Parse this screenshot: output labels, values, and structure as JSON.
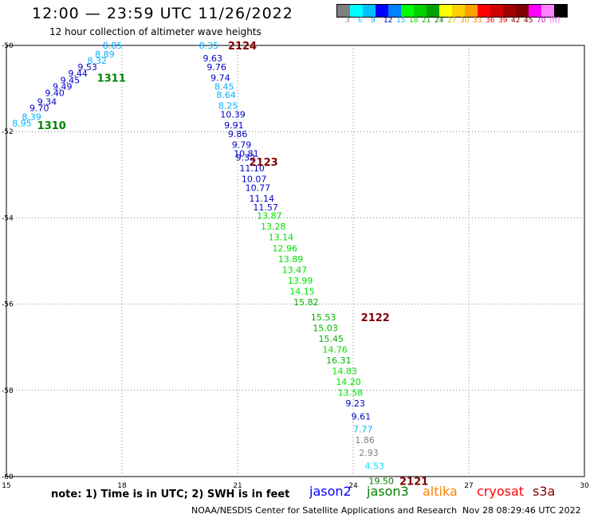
{
  "header": {
    "title": "12:00 — 23:59 UTC 11/26/2022",
    "subtitle": "12 hour collection of altimeter wave heights"
  },
  "color_scale": {
    "colors": [
      "#808080",
      "#00ffff",
      "#00bfff",
      "#0000ff",
      "#0080ff",
      "#00ff00",
      "#00d000",
      "#00a000",
      "#ffff00",
      "#ffd000",
      "#ffa000",
      "#ff0000",
      "#d00000",
      "#a00000",
      "#800000",
      "#ff00ff",
      "#ff80ff",
      "#000000"
    ],
    "labels": [
      "3",
      "6",
      "9",
      "12",
      "15",
      "18",
      "21",
      "24",
      "27",
      "30",
      "33",
      "36",
      "39",
      "42",
      "45",
      "70",
      "(ft)"
    ],
    "label_colors": [
      "#808080",
      "#00e0ff",
      "#00a0ff",
      "#0000c8",
      "#00b0ff",
      "#00e000",
      "#00b000",
      "#008000",
      "#c0c000",
      "#e0a000",
      "#ff8000",
      "#ff0000",
      "#d00000",
      "#a00000",
      "#800000",
      "#d000d0",
      "#ff60ff",
      "#000000"
    ]
  },
  "map": {
    "x_ticks": [
      "15",
      "18",
      "21",
      "24",
      "27",
      "30"
    ],
    "y_ticks": [
      "-50",
      "-52",
      "-54",
      "-56",
      "-58",
      "-60"
    ],
    "grid_color": "#808080"
  },
  "observations": [
    {
      "v": "8.85",
      "lon": 17.5,
      "lat": -50.0,
      "c": "#00b0ff"
    },
    {
      "v": "8.89",
      "lon": 17.3,
      "lat": -50.2,
      "c": "#00b0ff"
    },
    {
      "v": "8.32",
      "lon": 17.1,
      "lat": -50.35,
      "c": "#00b0ff"
    },
    {
      "v": "9.53",
      "lon": 16.85,
      "lat": -50.5,
      "c": "#0000c8"
    },
    {
      "v": "9.44",
      "lon": 16.6,
      "lat": -50.65,
      "c": "#0000c8"
    },
    {
      "v": "9.45",
      "lon": 16.4,
      "lat": -50.8,
      "c": "#0000c8"
    },
    {
      "v": "9.49",
      "lon": 16.2,
      "lat": -50.95,
      "c": "#0000c8"
    },
    {
      "v": "9.40",
      "lon": 16.0,
      "lat": -51.1,
      "c": "#0000c8"
    },
    {
      "v": "9.34",
      "lon": 15.8,
      "lat": -51.3,
      "c": "#0000c8"
    },
    {
      "v": "9.70",
      "lon": 15.6,
      "lat": -51.45,
      "c": "#0000c8"
    },
    {
      "v": "8.39",
      "lon": 15.4,
      "lat": -51.65,
      "c": "#00b0ff"
    },
    {
      "v": "8.95",
      "lon": 15.15,
      "lat": -51.8,
      "c": "#00b0ff"
    },
    {
      "v": "8.35",
      "lon": 20.0,
      "lat": -50.0,
      "c": "#00b0ff"
    },
    {
      "v": "9.63",
      "lon": 20.1,
      "lat": -50.3,
      "c": "#0000c8"
    },
    {
      "v": "9.76",
      "lon": 20.2,
      "lat": -50.5,
      "c": "#0000c8"
    },
    {
      "v": "9.74",
      "lon": 20.3,
      "lat": -50.75,
      "c": "#0000c8"
    },
    {
      "v": "8.45",
      "lon": 20.4,
      "lat": -50.95,
      "c": "#00b0ff"
    },
    {
      "v": "8.64",
      "lon": 20.45,
      "lat": -51.15,
      "c": "#00b0ff"
    },
    {
      "v": "8.25",
      "lon": 20.5,
      "lat": -51.4,
      "c": "#00b0ff"
    },
    {
      "v": "10.39",
      "lon": 20.55,
      "lat": -51.6,
      "c": "#0000c8"
    },
    {
      "v": "9.91",
      "lon": 20.65,
      "lat": -51.85,
      "c": "#0000c8"
    },
    {
      "v": "9.86",
      "lon": 20.75,
      "lat": -52.05,
      "c": "#0000c8"
    },
    {
      "v": "9.79",
      "lon": 20.85,
      "lat": -52.3,
      "c": "#0000c8"
    },
    {
      "v": "10.81",
      "lon": 20.9,
      "lat": -52.5,
      "c": "#0000c8"
    },
    {
      "v": "9.32",
      "lon": 20.95,
      "lat": -52.6,
      "c": "#0000c8"
    },
    {
      "v": "11.10",
      "lon": 21.05,
      "lat": -52.85,
      "c": "#0000c8"
    },
    {
      "v": "10.07",
      "lon": 21.1,
      "lat": -53.1,
      "c": "#0000c8"
    },
    {
      "v": "10.77",
      "lon": 21.2,
      "lat": -53.3,
      "c": "#0000c8"
    },
    {
      "v": "11.14",
      "lon": 21.3,
      "lat": -53.55,
      "c": "#0000c8"
    },
    {
      "v": "11.57",
      "lon": 21.4,
      "lat": -53.75,
      "c": "#0000c8"
    },
    {
      "v": "13.87",
      "lon": 21.5,
      "lat": -53.95,
      "c": "#00e000"
    },
    {
      "v": "13.28",
      "lon": 21.6,
      "lat": -54.2,
      "c": "#00e000"
    },
    {
      "v": "13.14",
      "lon": 21.8,
      "lat": -54.45,
      "c": "#00e000"
    },
    {
      "v": "12.96",
      "lon": 21.9,
      "lat": -54.7,
      "c": "#00e000"
    },
    {
      "v": "13.89",
      "lon": 22.05,
      "lat": -54.95,
      "c": "#00e000"
    },
    {
      "v": "13.47",
      "lon": 22.15,
      "lat": -55.2,
      "c": "#00e000"
    },
    {
      "v": "13.99",
      "lon": 22.3,
      "lat": -55.45,
      "c": "#00e000"
    },
    {
      "v": "14.15",
      "lon": 22.35,
      "lat": -55.7,
      "c": "#00e000"
    },
    {
      "v": "15.82",
      "lon": 22.45,
      "lat": -55.95,
      "c": "#00b000"
    },
    {
      "v": "15.53",
      "lon": 22.9,
      "lat": -56.3,
      "c": "#00b000"
    },
    {
      "v": "15.03",
      "lon": 22.95,
      "lat": -56.55,
      "c": "#00b000"
    },
    {
      "v": "15.45",
      "lon": 23.1,
      "lat": -56.8,
      "c": "#00b000"
    },
    {
      "v": "14.76",
      "lon": 23.2,
      "lat": -57.05,
      "c": "#00e000"
    },
    {
      "v": "16.31",
      "lon": 23.3,
      "lat": -57.3,
      "c": "#00b000"
    },
    {
      "v": "14.83",
      "lon": 23.45,
      "lat": -57.55,
      "c": "#00e000"
    },
    {
      "v": "14.20",
      "lon": 23.55,
      "lat": -57.8,
      "c": "#00e000"
    },
    {
      "v": "13.58",
      "lon": 23.6,
      "lat": -58.05,
      "c": "#00e000"
    },
    {
      "v": "9.23",
      "lon": 23.8,
      "lat": -58.3,
      "c": "#0000c8"
    },
    {
      "v": "9.61",
      "lon": 23.95,
      "lat": -58.6,
      "c": "#0000c8"
    },
    {
      "v": "7.77",
      "lon": 24.0,
      "lat": -58.9,
      "c": "#00b0ff"
    },
    {
      "v": "1.86",
      "lon": 24.05,
      "lat": -59.15,
      "c": "#808080"
    },
    {
      "v": "2.93",
      "lon": 24.15,
      "lat": -59.45,
      "c": "#808080"
    },
    {
      "v": "4.53",
      "lon": 24.3,
      "lat": -59.75,
      "c": "#00e0ff"
    },
    {
      "v": "19.50",
      "lon": 24.4,
      "lat": -60.1,
      "c": "#008000"
    }
  ],
  "pass_labels": [
    {
      "t": "2124",
      "lon": 20.75,
      "lat": -50.0,
      "c": "#800000"
    },
    {
      "t": "1311",
      "lon": 17.35,
      "lat": -50.75,
      "c": "#008000"
    },
    {
      "t": "1310",
      "lon": 15.8,
      "lat": -51.85,
      "c": "#008000"
    },
    {
      "t": "2123",
      "lon": 21.3,
      "lat": -52.7,
      "c": "#800000"
    },
    {
      "t": "2122",
      "lon": 24.2,
      "lat": -56.3,
      "c": "#800000"
    },
    {
      "t": "2121",
      "lon": 25.2,
      "lat": -60.1,
      "c": "#800000"
    }
  ],
  "footer": {
    "note": "note:  1) Time is in UTC;  2) SWH is in feet",
    "satellites": [
      {
        "name": "jason2",
        "color": "#0000ff"
      },
      {
        "name": "jason3",
        "color": "#008000"
      },
      {
        "name": "altika",
        "color": "#ff8000"
      },
      {
        "name": "cryosat",
        "color": "#ff0000"
      },
      {
        "name": "s3a",
        "color": "#800000"
      }
    ],
    "credit": "NOAA/NESDIS Center for Satellite Applications and Research",
    "timestamp": "Nov 28 08:29:46 UTC 2022"
  }
}
